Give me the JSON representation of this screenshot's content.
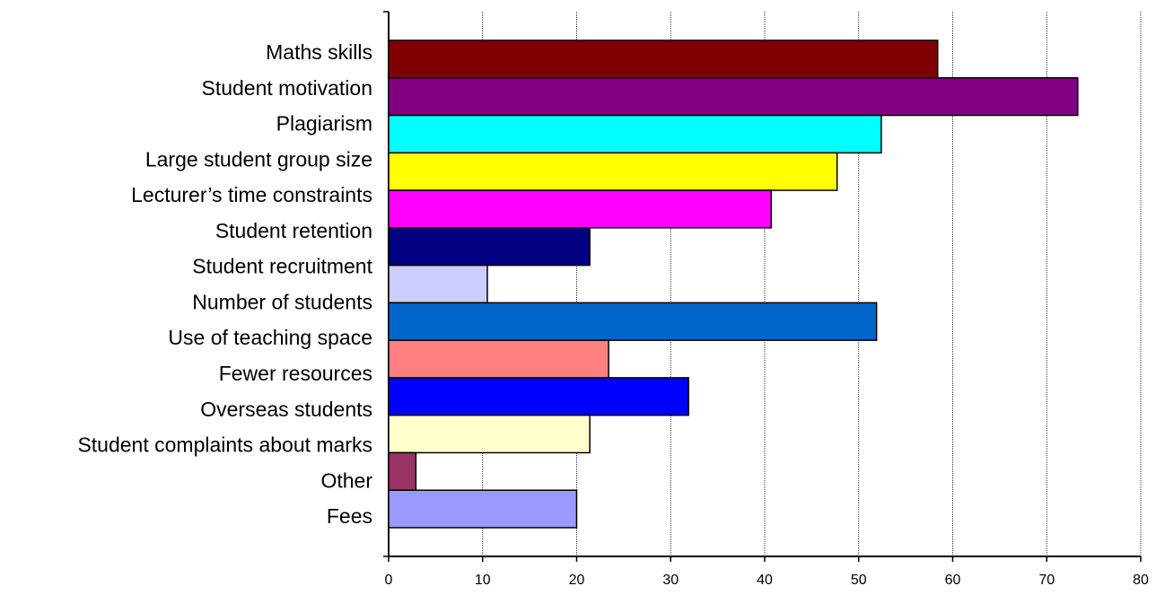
{
  "chart_data": {
    "type": "bar",
    "orientation": "horizontal",
    "categories": [
      "Maths skills",
      "Student motivation",
      "Plagiarism",
      "Large student group size",
      "Lecturer’s time constraints",
      "Student retention",
      "Student recruitment",
      "Number of students",
      "Use of teaching space",
      "Fewer resources",
      "Overseas students",
      "Student complaints about marks",
      "Other",
      "Fees"
    ],
    "values": [
      58.4,
      73.3,
      52.4,
      47.7,
      40.7,
      21.4,
      10.5,
      51.9,
      23.4,
      31.9,
      21.4,
      2.9,
      20.0,
      null
    ],
    "colors": [
      "#800000",
      "#800080",
      "#00ffff",
      "#ffff00",
      "#ff00ff",
      "#000080",
      "#ccccff",
      "#0066cc",
      "#ff8080",
      "#0000ff",
      "#ffffcc",
      "#993366",
      "#9999ff",
      null
    ],
    "xlim": [
      0,
      80
    ],
    "xticks": [
      0,
      10,
      20,
      30,
      40,
      50,
      60,
      70,
      80
    ],
    "grid": true
  }
}
